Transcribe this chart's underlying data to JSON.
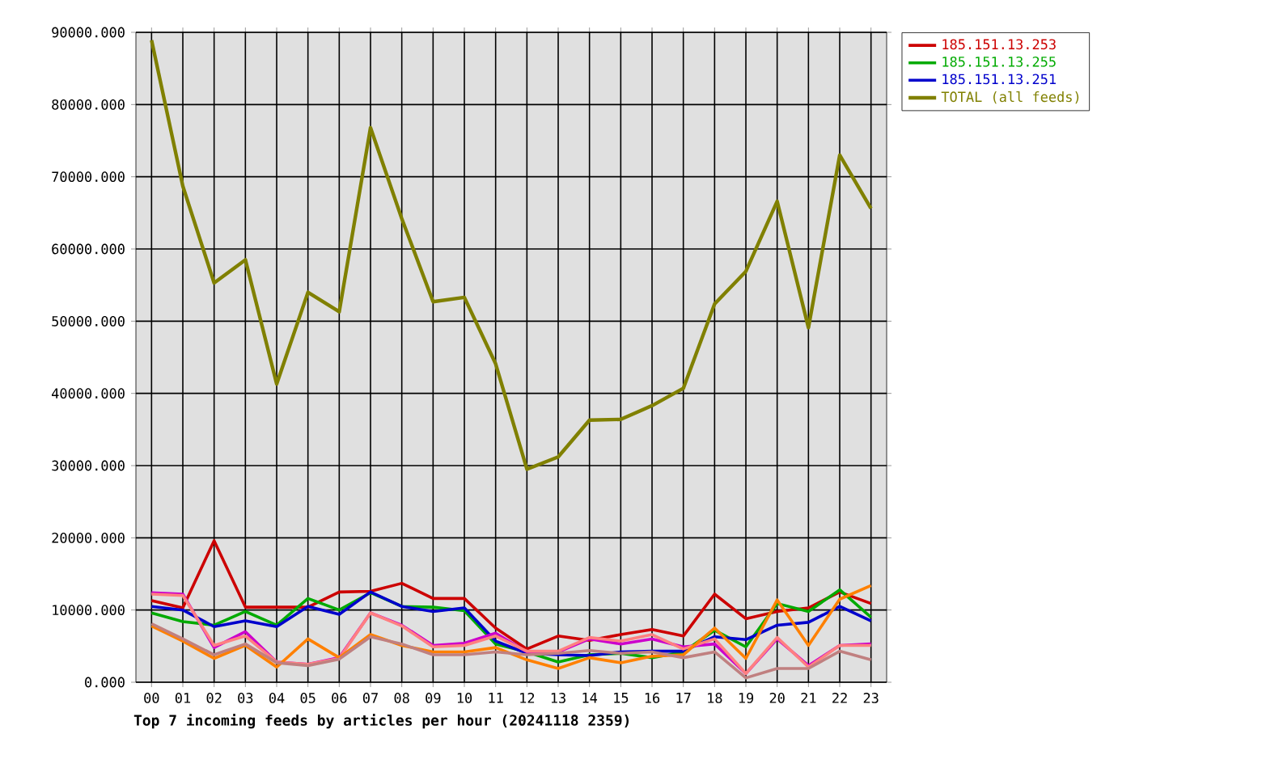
{
  "chart_data": {
    "type": "line",
    "xlabel": "**Top 7 incoming feeds by articles per hour (20241118 2359)**",
    "categories": [
      "00",
      "01",
      "02",
      "03",
      "04",
      "05",
      "06",
      "07",
      "08",
      "09",
      "10",
      "11",
      "12",
      "13",
      "14",
      "15",
      "16",
      "17",
      "18",
      "19",
      "20",
      "21",
      "22",
      "23"
    ],
    "ylim": [
      0,
      90000
    ],
    "yticks": [
      {
        "value": 0,
        "label": "0.000"
      },
      {
        "value": 10000,
        "label": "10000.000"
      },
      {
        "value": 20000,
        "label": "20000.000"
      },
      {
        "value": 30000,
        "label": "30000.000"
      },
      {
        "value": 40000,
        "label": "40000.000"
      },
      {
        "value": 50000,
        "label": "50000.000"
      },
      {
        "value": 60000,
        "label": "60000.000"
      },
      {
        "value": 70000,
        "label": "70000.000"
      },
      {
        "value": 80000,
        "label": "80000.000"
      },
      {
        "value": 90000,
        "label": "90000.000"
      }
    ],
    "grid": true,
    "legend": "right",
    "series": [
      {
        "name": "185.151.13.253",
        "color": "#cc0000",
        "values": [
          11300,
          10300,
          19600,
          10400,
          10400,
          10400,
          12500,
          12600,
          13700,
          11600,
          11600,
          7500,
          4600,
          6400,
          5800,
          6600,
          7300,
          6400,
          12200,
          8800,
          9800,
          10300,
          12500,
          10900
        ]
      },
      {
        "name": "185.151.13.255",
        "color": "#00aa00",
        "values": [
          9600,
          8400,
          7900,
          9800,
          7900,
          11600,
          10000,
          12400,
          10500,
          10400,
          9900,
          5300,
          4200,
          2800,
          3800,
          4000,
          3400,
          4200,
          7200,
          4900,
          10900,
          9800,
          12800,
          9000
        ]
      },
      {
        "name": "185.151.13.251",
        "color": "#0000cc",
        "values": [
          10500,
          10000,
          7700,
          8500,
          7700,
          10500,
          9400,
          12500,
          10500,
          9800,
          10300,
          5700,
          4000,
          3800,
          3700,
          4200,
          4300,
          4300,
          6300,
          5900,
          7900,
          8300,
          10500,
          8500
        ]
      },
      {
        "color": "#cc00cc",
        "values": [
          12400,
          12200,
          4800,
          7000,
          2800,
          2500,
          3400,
          9600,
          7900,
          5100,
          5400,
          6800,
          4200,
          4200,
          6000,
          5300,
          6000,
          4900,
          5300,
          1200,
          6000,
          2300,
          5100,
          5300
        ]
      },
      {
        "color": "#ff8080",
        "values": [
          12200,
          12000,
          5100,
          6400,
          2800,
          2500,
          3300,
          9600,
          7800,
          4900,
          5100,
          6400,
          4300,
          4300,
          6200,
          5700,
          6600,
          4600,
          6000,
          1200,
          6200,
          2100,
          5100,
          5100
        ]
      },
      {
        "color": "#ff8000",
        "values": [
          7800,
          5700,
          3300,
          5100,
          2100,
          6000,
          3400,
          6600,
          5100,
          4200,
          4200,
          4800,
          3100,
          1900,
          3400,
          2700,
          3600,
          3800,
          7500,
          3300,
          11400,
          5100,
          11500,
          13400
        ]
      },
      {
        "color": "#c08080",
        "values": [
          8100,
          6000,
          3800,
          5300,
          2700,
          2300,
          3200,
          6300,
          5300,
          3800,
          3800,
          4200,
          3800,
          4000,
          4400,
          4000,
          4200,
          3400,
          4200,
          600,
          1900,
          1900,
          4300,
          3100
        ]
      },
      {
        "name": "TOTAL (all feeds)",
        "color": "#808000",
        "values": [
          88900,
          68700,
          55300,
          58500,
          41300,
          54000,
          51300,
          76800,
          64200,
          52700,
          53300,
          44100,
          29500,
          31200,
          36300,
          36400,
          38300,
          40700,
          52400,
          56900,
          66600,
          49100,
          73000,
          65600
        ]
      }
    ]
  }
}
